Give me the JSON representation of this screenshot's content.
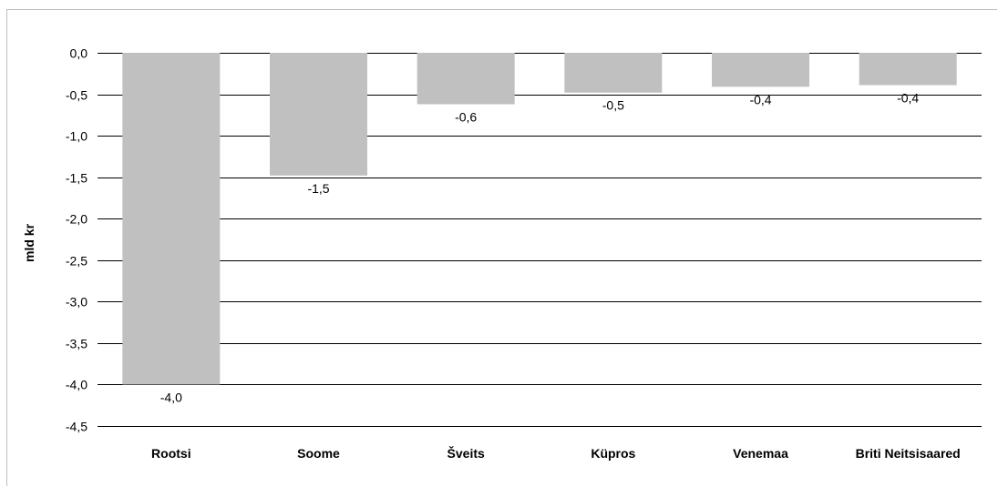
{
  "chart_data": {
    "type": "bar",
    "title": "",
    "xlabel": "",
    "ylabel": "mld kr",
    "categories": [
      "Rootsi",
      "Soome",
      "Šveits",
      "Küpros",
      "Venemaa",
      "Briti Neitsisaared"
    ],
    "values": [
      -4.0,
      -1.48,
      -0.62,
      -0.48,
      -0.41,
      -0.39
    ],
    "value_labels": [
      "-4,0",
      "-1,5",
      "-0,6",
      "-0,5",
      "-0,4",
      "-0,4"
    ],
    "ylim": [
      -4.5,
      0.0
    ],
    "yticks": [
      0.0,
      -0.5,
      -1.0,
      -1.5,
      -2.0,
      -2.5,
      -3.0,
      -3.5,
      -4.0,
      -4.5
    ],
    "ytick_labels": [
      "0,0",
      "-0,5",
      "-1,0",
      "-1,5",
      "-2,0",
      "-2,5",
      "-3,0",
      "-3,5",
      "-4,0",
      "-4,5"
    ],
    "grid": true,
    "legend": "none",
    "bar_color": "#c0c0c0",
    "grid_color": "#000000"
  }
}
